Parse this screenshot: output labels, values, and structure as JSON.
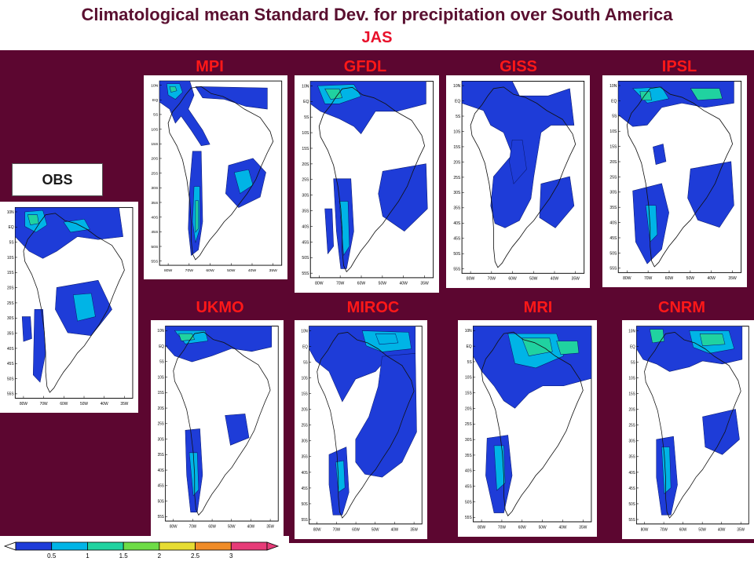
{
  "title": "Climatological mean Standard Dev. for precipitation over South America",
  "subtitle": "JAS",
  "obs_label": "OBS",
  "models_top": [
    "MPI",
    "GFDL",
    "GISS",
    "IPSL"
  ],
  "models_bottom": [
    "UKMO",
    "MIROC",
    "MRI",
    "CNRM"
  ],
  "lat_ticks": [
    "10N",
    "EQ",
    "5S",
    "10S",
    "15S",
    "20S",
    "25S",
    "30S",
    "35S",
    "40S",
    "45S",
    "50S",
    "55S"
  ],
  "lon_ticks": [
    "80W",
    "70W",
    "60W",
    "50W",
    "40W",
    "35W"
  ],
  "legend": {
    "values": [
      "0.5",
      "1",
      "1.5",
      "2",
      "2.5",
      "3"
    ],
    "colors": [
      "#1e3cd8",
      "#00b4e6",
      "#20d2a0",
      "#6edc46",
      "#e6dc32",
      "#f08c28",
      "#e63c78"
    ]
  },
  "colors": {
    "title": "#5a1030",
    "subtitle": "#e8102a",
    "model_label": "#ff1818",
    "background_panel": "#5c0630",
    "blue_contour": "#1e3cd8",
    "cyan_contour": "#00b4e6",
    "green_contour": "#20d2a0"
  }
}
